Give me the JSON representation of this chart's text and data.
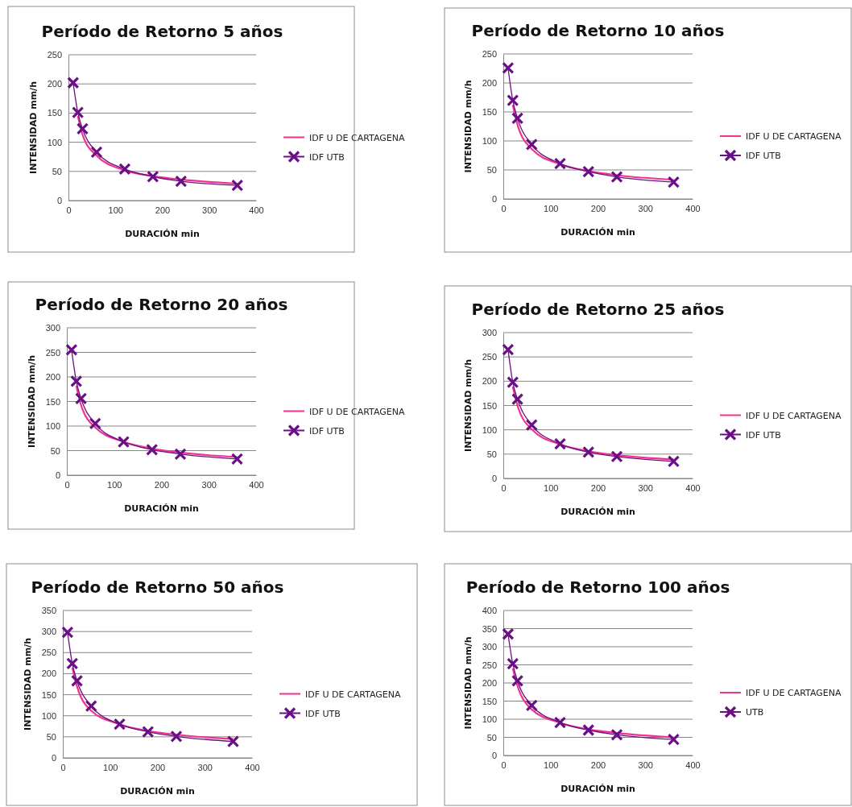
{
  "chart_data": [
    {
      "type": "line",
      "title": "Período de Retorno  5 años",
      "xlabel": "DURACIÓN  min",
      "ylabel": "INTENSIDAD  mm/h",
      "xlim": [
        0,
        400
      ],
      "xticks": [
        0,
        100,
        200,
        300,
        400
      ],
      "ylim": [
        0,
        250
      ],
      "yticks": [
        0,
        50,
        100,
        150,
        200,
        250
      ],
      "grid": "y",
      "legend": "right",
      "series": [
        {
          "name": "IDF U DE CARTAGENA",
          "color": "#f0348c",
          "marker": "none",
          "x": [
            20,
            30,
            60,
            120,
            180,
            240,
            360
          ],
          "values": [
            145,
            113,
            77,
            52,
            42,
            36,
            29
          ]
        },
        {
          "name": "IDF UTB",
          "color": "#6a0f86",
          "marker": "cross",
          "x": [
            10,
            20,
            30,
            60,
            120,
            180,
            240,
            360
          ],
          "values": [
            202,
            151,
            123,
            83,
            54,
            41,
            33,
            26
          ]
        }
      ]
    },
    {
      "type": "line",
      "title": "Período de Retorno 10 años",
      "xlabel": "DURACIÓN  min",
      "ylabel": "INTENSIDAD  mm/h",
      "xlim": [
        0,
        400
      ],
      "xticks": [
        0,
        100,
        200,
        300,
        400
      ],
      "ylim": [
        0,
        250
      ],
      "yticks": [
        0,
        50,
        100,
        150,
        200,
        250
      ],
      "grid": "y",
      "legend": "right",
      "series": [
        {
          "name": "IDF U DE CARTAGENA",
          "color": "#f0348c",
          "marker": "none",
          "x": [
            20,
            30,
            60,
            120,
            180,
            240,
            360
          ],
          "values": [
            162,
            128,
            86,
            60,
            48,
            41,
            33
          ]
        },
        {
          "name": "IDF UTB",
          "color": "#6a0f86",
          "marker": "cross",
          "x": [
            10,
            20,
            30,
            60,
            120,
            180,
            240,
            360
          ],
          "values": [
            226,
            170,
            139,
            94,
            61,
            47,
            38,
            29
          ]
        }
      ]
    },
    {
      "type": "line",
      "title": "Período de Retorno 20 años",
      "xlabel": "DURACIÓN  min",
      "ylabel": "INTENSIDAD  mm/h",
      "xlim": [
        0,
        400
      ],
      "xticks": [
        0,
        100,
        200,
        300,
        400
      ],
      "ylim": [
        0,
        300
      ],
      "yticks": [
        0,
        50,
        100,
        150,
        200,
        250,
        300
      ],
      "grid": "y",
      "legend": "right",
      "series": [
        {
          "name": "IDF U DE CARTAGENA",
          "color": "#f0348c",
          "marker": "none",
          "x": [
            20,
            30,
            60,
            120,
            180,
            240,
            360
          ],
          "values": [
            182,
            143,
            97,
            68,
            54,
            46,
            37
          ]
        },
        {
          "name": "IDF UTB",
          "color": "#6a0f86",
          "marker": "cross",
          "x": [
            10,
            20,
            30,
            60,
            120,
            180,
            240,
            360
          ],
          "values": [
            255,
            191,
            156,
            105,
            68,
            52,
            43,
            33
          ]
        }
      ]
    },
    {
      "type": "line",
      "title": "Período de Retorno 25 años",
      "xlabel": "DURACIÓN  min",
      "ylabel": "INTENSIDAD  mm/h",
      "xlim": [
        0,
        400
      ],
      "xticks": [
        0,
        100,
        200,
        300,
        400
      ],
      "ylim": [
        0,
        300
      ],
      "yticks": [
        0,
        50,
        100,
        150,
        200,
        250,
        300
      ],
      "grid": "y",
      "legend": "right",
      "series": [
        {
          "name": "IDF U DE CARTAGENA",
          "color": "#f0348c",
          "marker": "none",
          "x": [
            20,
            30,
            60,
            120,
            180,
            240,
            360
          ],
          "values": [
            189,
            150,
            101,
            70,
            56,
            48,
            39
          ]
        },
        {
          "name": "IDF UTB",
          "color": "#6a0f86",
          "marker": "cross",
          "x": [
            10,
            20,
            30,
            60,
            120,
            180,
            240,
            360
          ],
          "values": [
            265,
            198,
            163,
            110,
            71,
            54,
            45,
            35
          ]
        }
      ]
    },
    {
      "type": "line",
      "title": "Período de Retorno 50 años",
      "xlabel": "DURACIÓN  min",
      "ylabel": "INTENSIDAD  mm/h",
      "xlim": [
        0,
        400
      ],
      "xticks": [
        0,
        100,
        200,
        300,
        400
      ],
      "ylim": [
        0,
        350
      ],
      "yticks": [
        0,
        50,
        100,
        150,
        200,
        250,
        300,
        350
      ],
      "grid": "y",
      "legend": "right",
      "series": [
        {
          "name": "IDF U DE CARTAGENA",
          "color": "#f0348c",
          "marker": "none",
          "x": [
            20,
            30,
            60,
            120,
            180,
            240,
            360
          ],
          "values": [
            214,
            170,
            112,
            80,
            64,
            55,
            45
          ]
        },
        {
          "name": "IDF UTB",
          "color": "#6a0f86",
          "marker": "cross",
          "x": [
            10,
            20,
            30,
            60,
            120,
            180,
            240,
            360
          ],
          "values": [
            298,
            224,
            183,
            123,
            80,
            62,
            51,
            39
          ]
        }
      ]
    },
    {
      "type": "line",
      "title": "Período de Retorno 100 años",
      "xlabel": "DURACIÓN  min",
      "ylabel": "INTENSIDAD  mm/h",
      "xlim": [
        0,
        400
      ],
      "xticks": [
        0,
        100,
        200,
        300,
        400
      ],
      "ylim": [
        0,
        400
      ],
      "yticks": [
        0,
        50,
        100,
        150,
        200,
        250,
        300,
        350,
        400
      ],
      "grid": "y",
      "legend": "right",
      "series": [
        {
          "name": "IDF U DE CARTAGENA",
          "color": "#f0348c",
          "marker": "none",
          "x": [
            20,
            30,
            60,
            120,
            180,
            240,
            360
          ],
          "values": [
            240,
            192,
            127,
            90,
            72,
            62,
            50
          ]
        },
        {
          "name": "UTB",
          "color": "#6a0f86",
          "marker": "cross",
          "x": [
            10,
            20,
            30,
            60,
            120,
            180,
            240,
            360
          ],
          "values": [
            335,
            253,
            206,
            138,
            91,
            70,
            57,
            44
          ]
        }
      ]
    }
  ]
}
